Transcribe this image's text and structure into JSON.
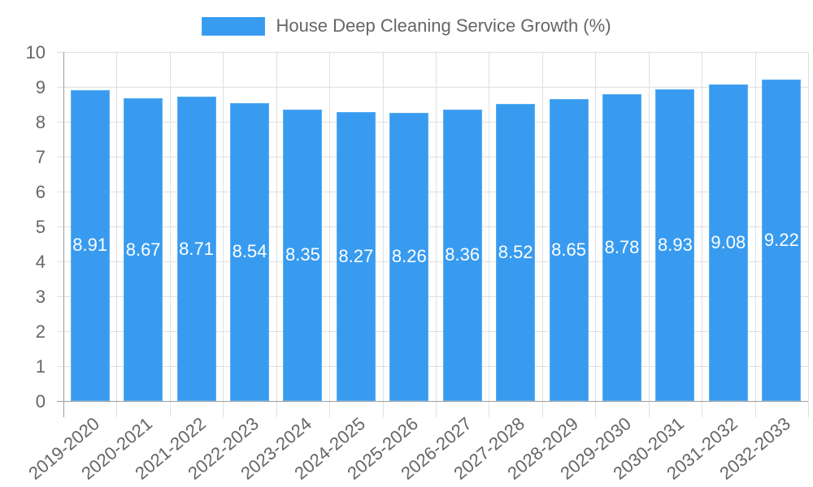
{
  "chart_data": {
    "type": "bar",
    "title": "",
    "legend": [
      {
        "label": "House Deep Cleaning Service Growth (%)",
        "color": "#379bef"
      }
    ],
    "legend_position": "top",
    "categories": [
      "2019-2020",
      "2020-2021",
      "2021-2022",
      "2022-2023",
      "2023-2024",
      "2024-2025",
      "2025-2026",
      "2026-2027",
      "2027-2028",
      "2028-2029",
      "2029-2030",
      "2030-2031",
      "2031-2032",
      "2032-2033"
    ],
    "series": [
      {
        "name": "House Deep Cleaning Service Growth (%)",
        "values": [
          8.91,
          8.67,
          8.71,
          8.54,
          8.35,
          8.27,
          8.26,
          8.36,
          8.52,
          8.65,
          8.78,
          8.93,
          9.08,
          9.22
        ],
        "color": "#379bef"
      }
    ],
    "data_labels": [
      "8.91",
      "8.67",
      "8.71",
      "8.54",
      "8.35",
      "8.27",
      "8.26",
      "8.36",
      "8.52",
      "8.65",
      "8.78",
      "8.93",
      "9.08",
      "9.22"
    ],
    "xlabel": "",
    "ylabel": "",
    "ylim": [
      0,
      10
    ],
    "yticks": [
      "0",
      "1",
      "2",
      "3",
      "4",
      "5",
      "6",
      "7",
      "8",
      "9",
      "10"
    ],
    "grid": true
  },
  "legend": {
    "label": "House Deep Cleaning Service Growth (%)"
  },
  "colors": {
    "bar": "#379bef",
    "grid": "#e0e0e0",
    "axis": "#9e9e9e",
    "text": "#666666"
  }
}
